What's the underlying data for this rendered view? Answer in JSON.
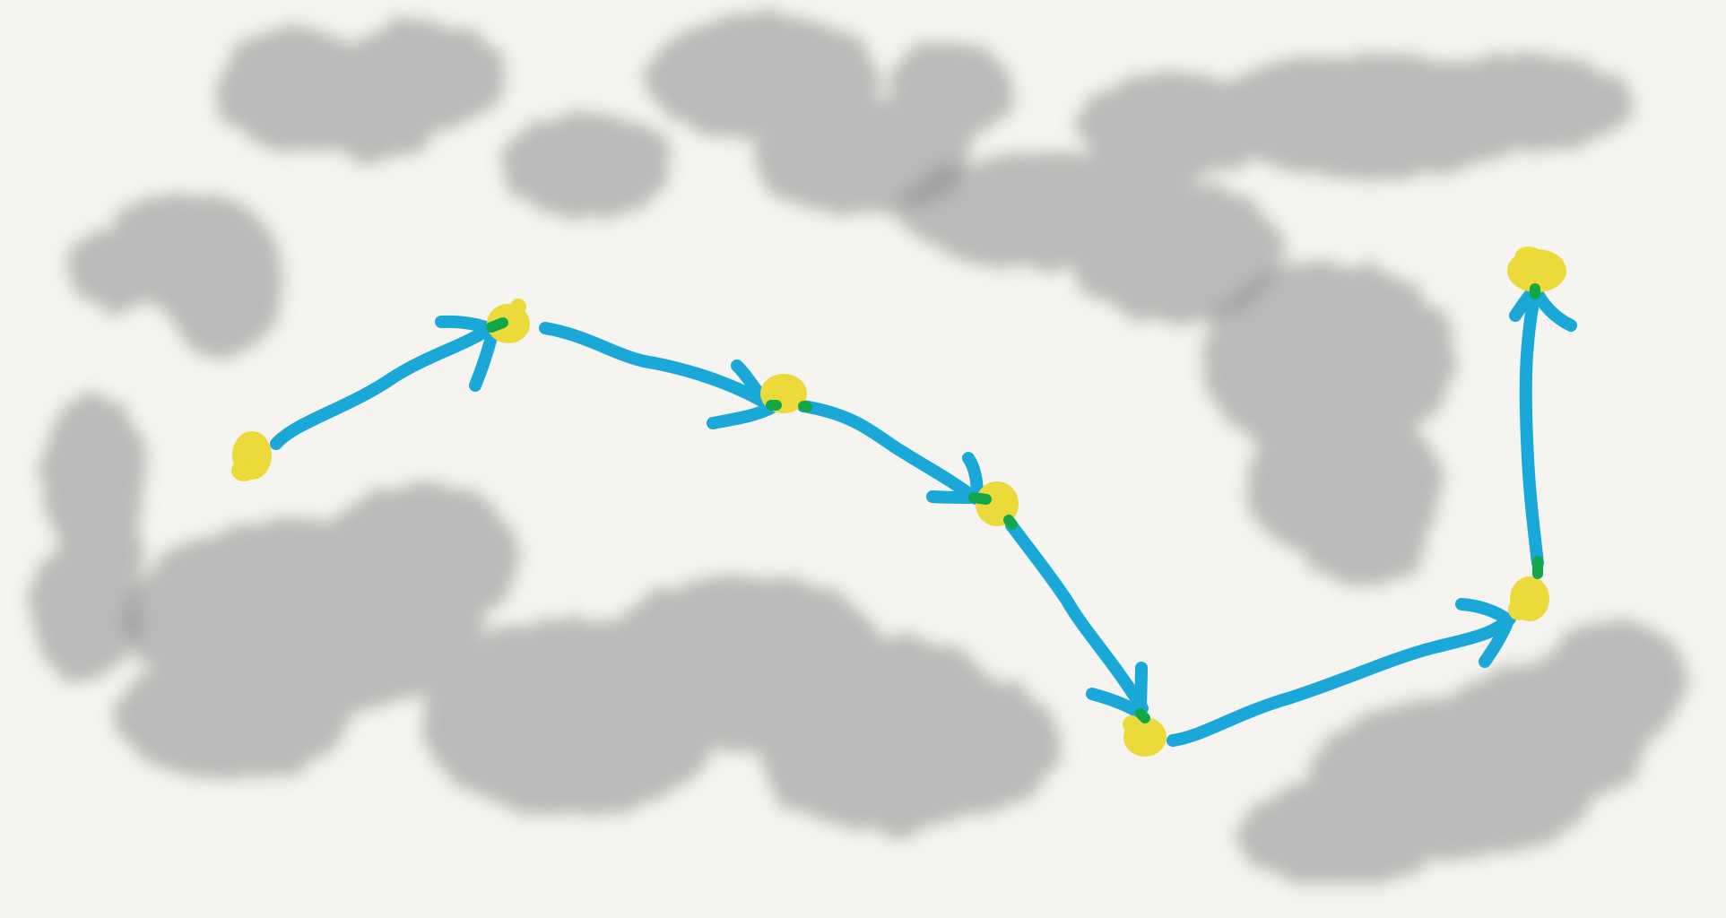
{
  "canvas": {
    "background": "#f5f4f0"
  },
  "colors": {
    "cloud": "#8a8a8a",
    "path": "#19a8d8",
    "waypoint": "#ecd93a",
    "contact": "#12a84a"
  },
  "icons": {
    "waypoint": "yellow-dot-icon",
    "arrow": "blue-arrow-icon",
    "obstacle": "gray-cloud-icon"
  },
  "waypoint_count": 7,
  "arrow_count": 6
}
